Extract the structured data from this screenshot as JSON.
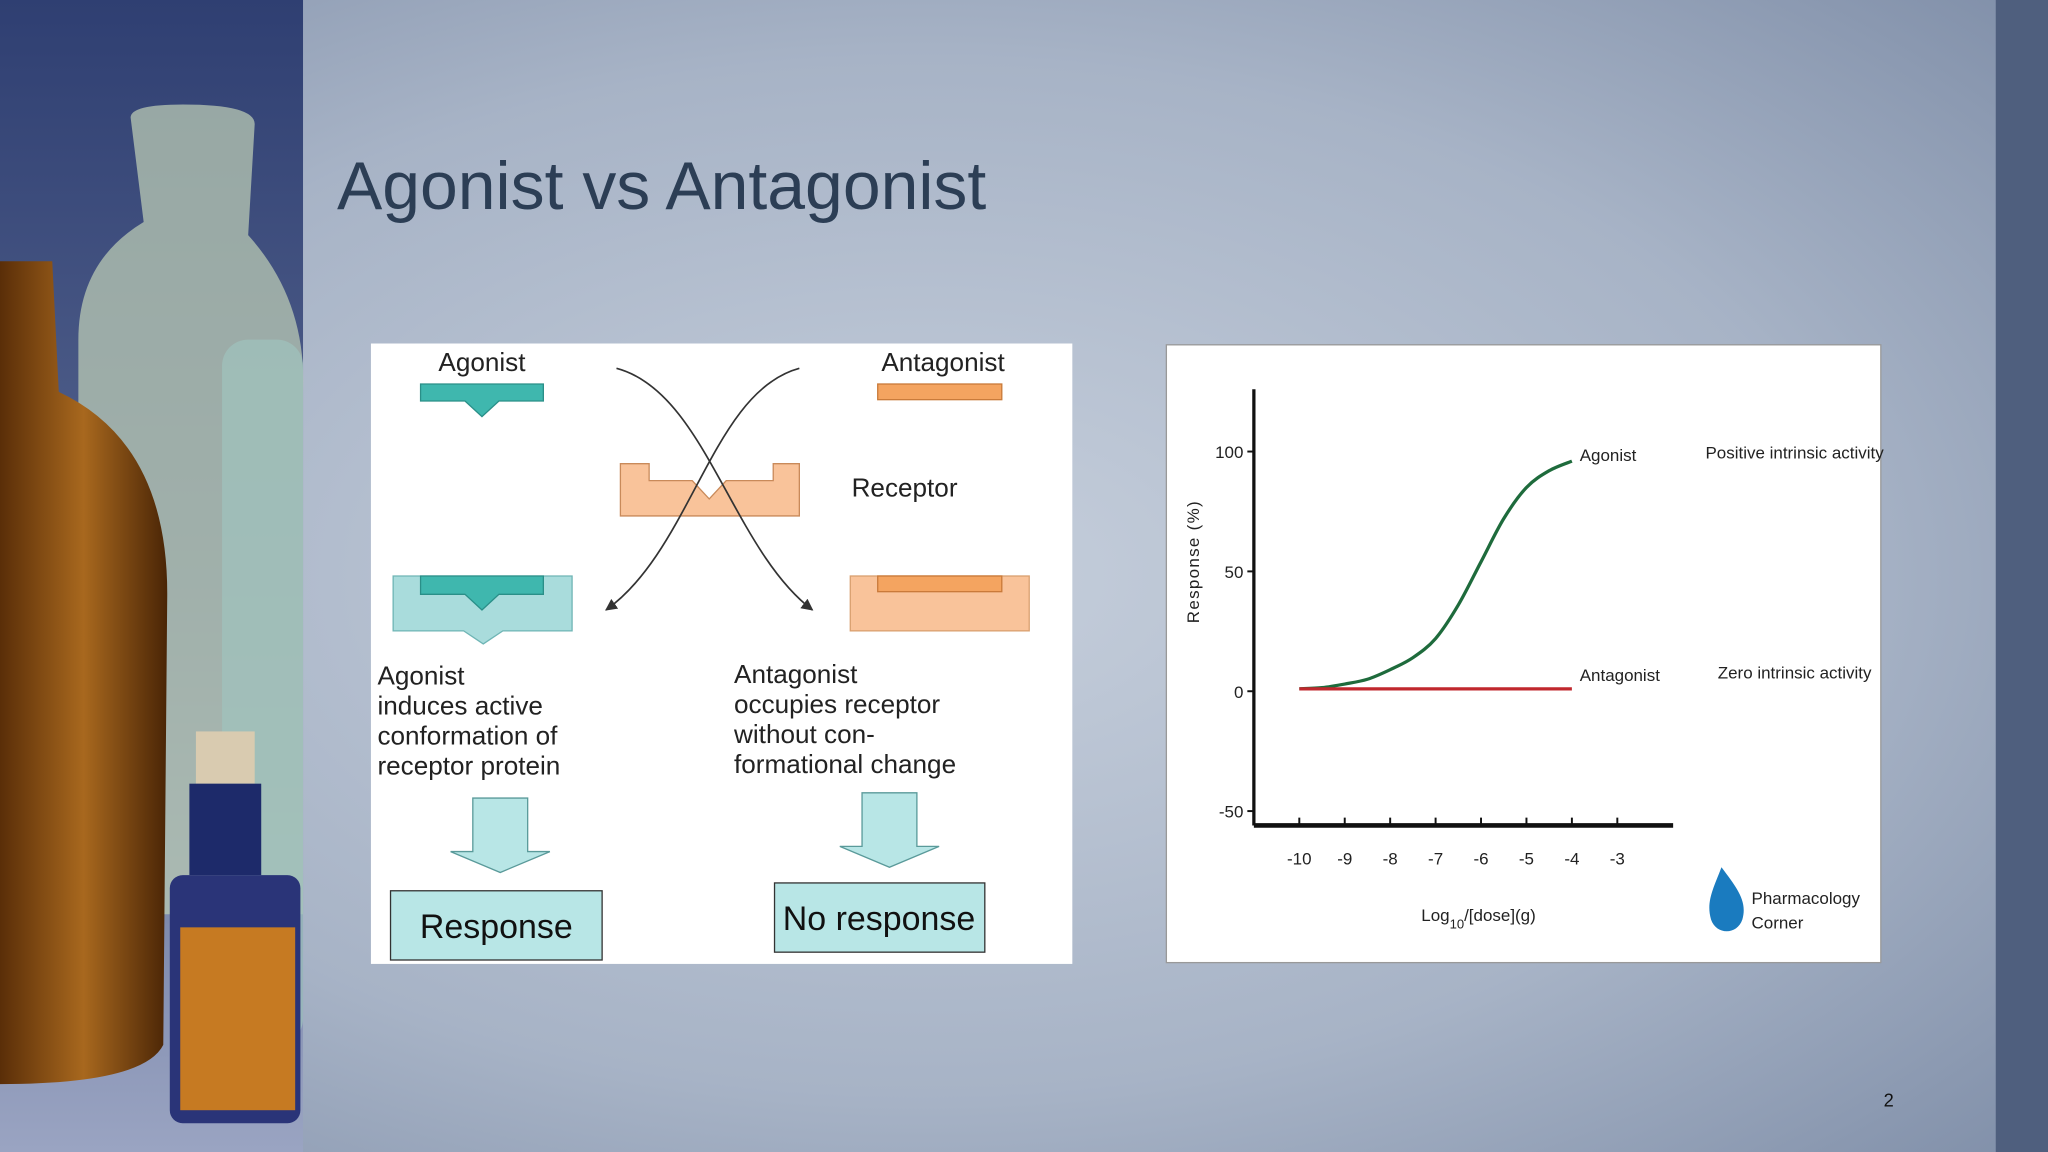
{
  "slide": {
    "title": "Agonist vs Antagonist",
    "page_number": "2"
  },
  "diagram": {
    "agonist_label": "Agonist",
    "antagonist_label": "Antagonist",
    "receptor_label": "Receptor",
    "agonist_text": [
      "Agonist",
      "induces active",
      "conformation of",
      "receptor protein"
    ],
    "antagonist_text": [
      "Antagonist",
      "occupies receptor",
      "without con-",
      "formational change"
    ],
    "agonist_result": "Response",
    "antagonist_result": "No response"
  },
  "chart_data": {
    "type": "line",
    "y_label": "Response (%)",
    "x_label": [
      "Log",
      "10",
      "/[dose](g)"
    ],
    "xlim": [
      -11,
      -1.8
    ],
    "xticks": [
      -10,
      -9,
      -8,
      -7,
      -6,
      -5,
      -4,
      -3
    ],
    "ylim": [
      -56,
      126
    ],
    "yticks": [
      100,
      50,
      0,
      -50
    ],
    "series": [
      {
        "name": "Agonist",
        "color": "#1e6b3c",
        "annotation": "Positive intrinsic activity",
        "x": [
          -10,
          -9.5,
          -9,
          -8.5,
          -8,
          -7.5,
          -7,
          -6.5,
          -6,
          -5.5,
          -5,
          -4.5,
          -4
        ],
        "values": [
          1,
          1.5,
          3,
          5,
          9,
          14,
          22,
          36,
          54,
          72,
          85,
          92,
          96
        ]
      },
      {
        "name": "Antagonist",
        "color": "#c0272d",
        "annotation": "Zero intrinsic activity",
        "x": [
          -10,
          -4
        ],
        "values": [
          1,
          1
        ]
      }
    ],
    "logo": [
      "Pharmacology",
      "Corner"
    ]
  }
}
